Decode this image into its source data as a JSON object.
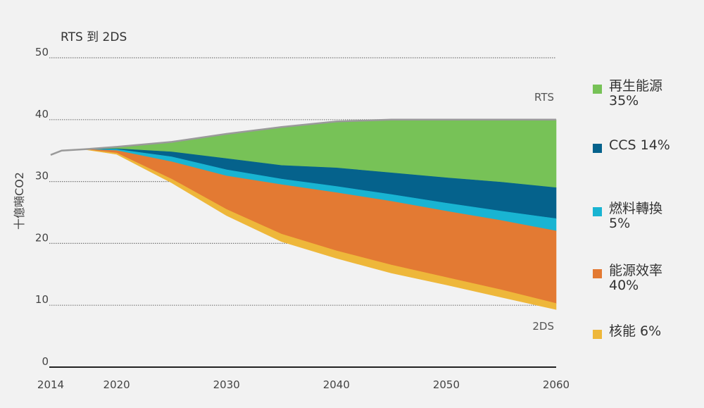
{
  "chart_data": {
    "type": "area",
    "title": "RTS 到 2DS",
    "ylabel": "十億噸CO2",
    "xlabel": "",
    "x_ticks": [
      "2014",
      "2020",
      "2030",
      "2040",
      "2050",
      "2060"
    ],
    "y_ticks": [
      "0",
      "10",
      "20",
      "30",
      "40",
      "50"
    ],
    "ylim": [
      0,
      50
    ],
    "xlim": [
      2014,
      2060
    ],
    "grid": true,
    "legend_position": "right",
    "x": [
      2014,
      2015,
      2017,
      2020,
      2025,
      2030,
      2035,
      2040,
      2045,
      2050,
      2055,
      2060
    ],
    "boundaries": {
      "rts": [
        34.3,
        35.0,
        35.2,
        35.6,
        36.4,
        37.7,
        38.8,
        39.7,
        40.0,
        40.0,
        40.0,
        40.0
      ],
      "after_renewables": [
        34.3,
        35.0,
        35.2,
        35.3,
        34.8,
        33.7,
        32.6,
        32.2,
        31.4,
        30.6,
        29.9,
        29.0
      ],
      "after_ccs": [
        34.3,
        35.0,
        35.2,
        35.2,
        34.0,
        31.9,
        30.4,
        29.2,
        27.9,
        26.5,
        25.2,
        24.0
      ],
      "after_fuel_switching": [
        34.3,
        35.0,
        35.2,
        35.0,
        33.2,
        30.9,
        29.5,
        28.2,
        26.8,
        25.2,
        23.7,
        22.0
      ],
      "after_efficiency": [
        34.3,
        35.0,
        35.2,
        34.6,
        30.4,
        25.5,
        21.5,
        18.8,
        16.5,
        14.5,
        12.5,
        10.3
      ],
      "two_ds": [
        34.3,
        35.0,
        35.2,
        34.4,
        29.8,
        24.5,
        20.3,
        17.6,
        15.2,
        13.3,
        11.3,
        9.3
      ]
    },
    "series": [
      {
        "name": "再生能源",
        "share": "35%",
        "color": "#77c257",
        "top": "rts",
        "bottom": "after_renewables"
      },
      {
        "name": "CCS",
        "share": "14%",
        "color": "#05628c",
        "top": "after_renewables",
        "bottom": "after_ccs"
      },
      {
        "name": "燃料轉換",
        "share": "5%",
        "color": "#19b4d2",
        "top": "after_ccs",
        "bottom": "after_fuel_switching"
      },
      {
        "name": "能源效率",
        "share": "40%",
        "color": "#e37a33",
        "top": "after_fuel_switching",
        "bottom": "after_efficiency"
      },
      {
        "name": "核能",
        "share": "6%",
        "color": "#eeb73a",
        "top": "after_efficiency",
        "bottom": "two_ds"
      }
    ],
    "line_labels": {
      "rts": "RTS",
      "two_ds": "2DS"
    },
    "baseline_color": "#9a9a9a"
  },
  "legend": {
    "items": [
      {
        "label": "再生能源",
        "pct": "35%",
        "color": "#77c257"
      },
      {
        "label": "CCS 14%",
        "pct": "",
        "color": "#05628c"
      },
      {
        "label": "燃料轉換",
        "pct": "5%",
        "color": "#19b4d2"
      },
      {
        "label": "能源效率",
        "pct": "40%",
        "color": "#e37a33"
      },
      {
        "label": "核能  6%",
        "pct": "",
        "color": "#eeb73a"
      }
    ]
  }
}
